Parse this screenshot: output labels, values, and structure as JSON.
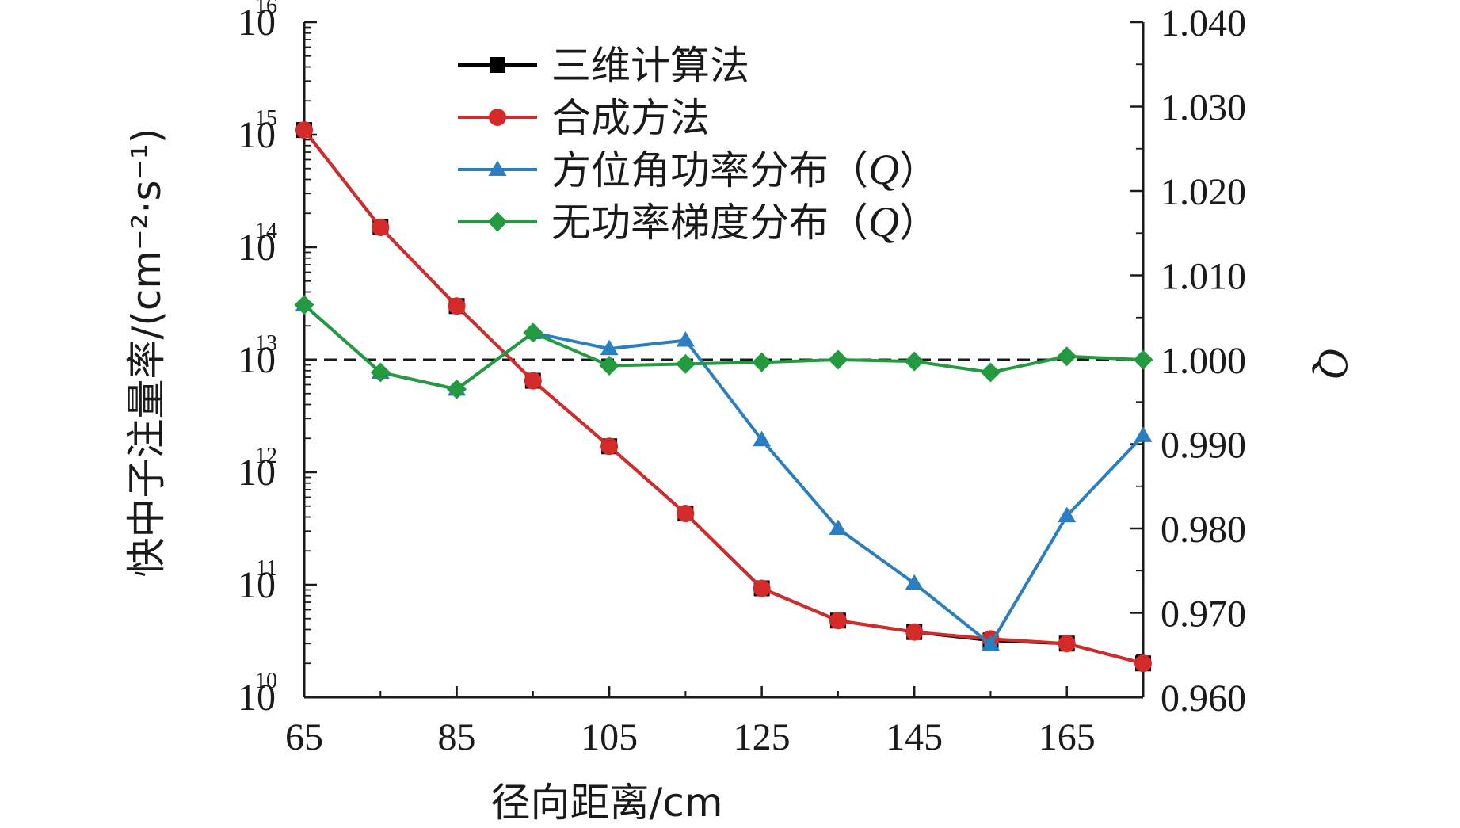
{
  "chart_data": {
    "type": "line",
    "xlabel": "径向距离/cm",
    "ylabel_left": "快中子注量率/(cm⁻²·s⁻¹)",
    "ylabel_right": "Q",
    "x": [
      65,
      75,
      85,
      95,
      105,
      115,
      125,
      135,
      145,
      155,
      165,
      175
    ],
    "xticks": [
      "65",
      "85",
      "105",
      "125",
      "145",
      "165"
    ],
    "xlim": [
      65,
      175
    ],
    "ylim_left": [
      10000000000.0,
      1e+16
    ],
    "yscale_left": "log",
    "yticks_left": [
      {
        "base": "10",
        "exp": "10"
      },
      {
        "base": "10",
        "exp": "11"
      },
      {
        "base": "10",
        "exp": "12"
      },
      {
        "base": "10",
        "exp": "13"
      },
      {
        "base": "10",
        "exp": "14"
      },
      {
        "base": "10",
        "exp": "15"
      },
      {
        "base": "10",
        "exp": "16"
      }
    ],
    "ylim_right": [
      0.96,
      1.04
    ],
    "yticks_right": [
      "0.960",
      "0.970",
      "0.980",
      "0.990",
      "1.000",
      "1.010",
      "1.020",
      "1.030",
      "1.040"
    ],
    "reference_line": {
      "axis": "right",
      "value": 1.0,
      "style": "dashed"
    },
    "series": [
      {
        "name": "三维计算法",
        "axis": "left",
        "color": "#000000",
        "marker": "square",
        "values": [
          1100000000000000.0,
          150000000000000.0,
          30000000000000.0,
          6500000000000.0,
          1700000000000.0,
          430000000000.0,
          93000000000.0,
          48000000000.0,
          38000000000.0,
          32000000000.0,
          30000000000.0,
          20000000000.0
        ]
      },
      {
        "name": "合成方法",
        "axis": "left",
        "color": "#d42a2a",
        "marker": "circle",
        "values": [
          1100000000000000.0,
          150000000000000.0,
          30000000000000.0,
          6500000000000.0,
          1700000000000.0,
          430000000000.0,
          93000000000.0,
          48000000000.0,
          38000000000.0,
          33000000000.0,
          30000000000.0,
          20000000000.0
        ]
      },
      {
        "name": "方位角功率分布（Q）",
        "axis": "right",
        "color": "#2b7fc1",
        "marker": "triangle",
        "values": [
          1.0065,
          0.9985,
          0.9965,
          1.0032,
          1.0013,
          1.0023,
          0.9905,
          0.98,
          0.9735,
          0.9663,
          0.9815,
          0.991
        ]
      },
      {
        "name": "无功率梯度分布（Q）",
        "axis": "right",
        "color": "#239a3f",
        "marker": "diamond",
        "values": [
          1.0065,
          0.9985,
          0.9965,
          1.0032,
          0.9993,
          0.9995,
          0.9997,
          1.0,
          0.9998,
          0.9985,
          1.0004,
          1.0
        ]
      }
    ],
    "legend": {
      "placement": "top-center",
      "entries": [
        {
          "text": "三维计算法"
        },
        {
          "text": "合成方法"
        },
        {
          "text": "方位角功率分布（",
          "italic": "Q",
          "close": "）"
        },
        {
          "text": "无功率梯度分布（",
          "italic": "Q",
          "close": "）"
        }
      ]
    },
    "grid": false
  }
}
